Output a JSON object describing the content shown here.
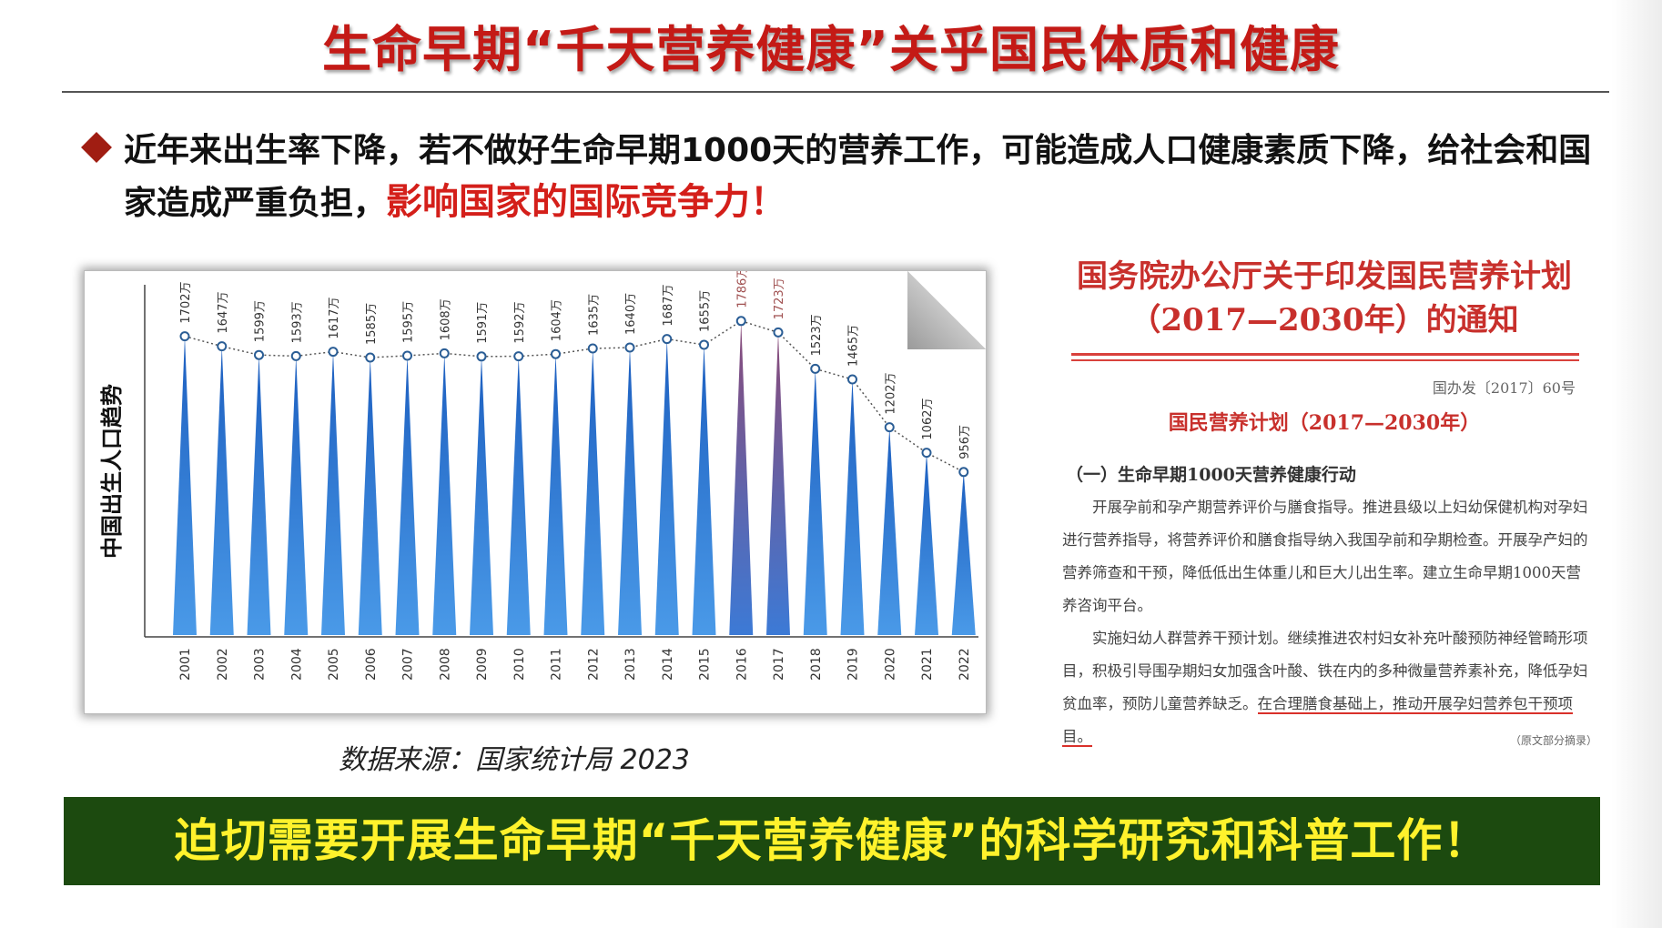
{
  "slide": {
    "title": "生命早期“千天营养健康”关乎国民体质和健康",
    "bullet_text": "近年来出生率下降，若不做好生命早期1000天的营养工作，可能造成人口健康素质下降，给社会和国家造成严重负担，",
    "bullet_emphasis": "影响国家的国际竞争力！",
    "source": "数据来源：国家统计局 2023",
    "banner": "迫切需要开展生命早期“千天营养健康”的科学研究和科普工作！"
  },
  "colors": {
    "title_red": "#c41a16",
    "emphasis_red": "#d41f1a",
    "bar_blue": "#2f7bd9",
    "bar_highlight": "#9a5a7a",
    "banner_bg": "#1c4a0f",
    "banner_text": "#fff22c"
  },
  "chart_data": {
    "type": "bar",
    "ylabel": "中国出生人口趋势",
    "categories": [
      "2001",
      "2002",
      "2003",
      "2004",
      "2005",
      "2006",
      "2007",
      "2008",
      "2009",
      "2010",
      "2011",
      "2012",
      "2013",
      "2014",
      "2015",
      "2016",
      "2017",
      "2018",
      "2019",
      "2020",
      "2021",
      "2022"
    ],
    "values": [
      1702,
      1647,
      1599,
      1593,
      1617,
      1585,
      1595,
      1608,
      1591,
      1592,
      1604,
      1635,
      1640,
      1687,
      1655,
      1786,
      1723,
      1523,
      1465,
      1202,
      1062,
      956
    ],
    "value_labels": [
      "1702万",
      "1647万",
      "1599万",
      "1593万",
      "1617万",
      "1585万",
      "1595万",
      "1608万",
      "1591万",
      "1592万",
      "1604万",
      "1635万",
      "1640万",
      "1687万",
      "1655万",
      "1786万",
      "1723万",
      "1523万",
      "1465万",
      "1202万",
      "1062万",
      "956万"
    ],
    "highlight": [
      "2016",
      "2017"
    ],
    "grid": false
  },
  "document": {
    "title_line1": "国务院办公厅关于印发国民营养计划",
    "title_line2": "（2017—2030年）的通知",
    "number": "国办发〔2017〕60号",
    "subtitle": "国民营养计划（2017—2030年）",
    "section": "（一）生命早期1000天营养健康行动",
    "para1": "开展孕前和孕产期营养评价与膳食指导。推进县级以上妇幼保健机构对孕妇进行营养指导，将营养评价和膳食指导纳入我国孕前和孕期检查。开展孕产妇的营养筛查和干预，降低低出生体重儿和巨大儿出生率。建立生命早期1000天营养咨询平台。",
    "para2": "实施妇幼人群营养干预计划。继续推进农村妇女补充叶酸预防神经管畸形项目，积极引导围孕期妇女加强含叶酸、铁在内的多种微量营养素补充，降低孕妇贫血率，预防儿童营养缺乏。",
    "para2_underlined": "在合理膳食基础上，推动开展孕妇营养包干预项目。",
    "note": "（原文部分摘录）"
  }
}
